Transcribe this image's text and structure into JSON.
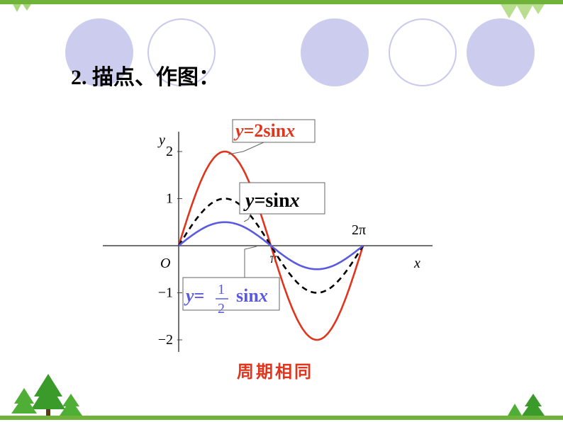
{
  "heading": "2. 描点、作图：",
  "caption": "周期相同",
  "colors": {
    "accent_green": "#6fb33a",
    "series_2sin": "#e0351c",
    "series_sin": "#000000",
    "series_half_sin": "#5a5ae0"
  },
  "chart_data": {
    "type": "line",
    "xlabel": "x",
    "ylabel": "y",
    "origin_label": "O",
    "x_ticks": [
      {
        "value": 3.14159,
        "label": "π"
      },
      {
        "value": 6.28318,
        "label": "2π"
      }
    ],
    "y_ticks": [
      {
        "value": 2,
        "label": "2"
      },
      {
        "value": 1,
        "label": "1"
      },
      {
        "value": -1,
        "label": "−1"
      },
      {
        "value": -2,
        "label": "−2"
      }
    ],
    "xlim": [
      0,
      6.28318
    ],
    "ylim": [
      -2,
      2
    ],
    "series": [
      {
        "name": "y=2sinx",
        "amplitude": 2,
        "style": "solid",
        "color": "#e0351c",
        "label_parts": {
          "y": "y",
          "eq": "=2sin",
          "x": "x"
        }
      },
      {
        "name": "y=sinx",
        "amplitude": 1,
        "style": "dashed",
        "color": "#000000",
        "label_parts": {
          "y": "y",
          "eq": "=sin",
          "x": "x"
        }
      },
      {
        "name": "y=1/2 sinx",
        "amplitude": 0.5,
        "style": "solid",
        "color": "#5a5ae0",
        "label_parts": {
          "y": "y",
          "eq": "=",
          "num": "1",
          "den": "2",
          "sin": "sin",
          "x": "x"
        }
      }
    ]
  }
}
